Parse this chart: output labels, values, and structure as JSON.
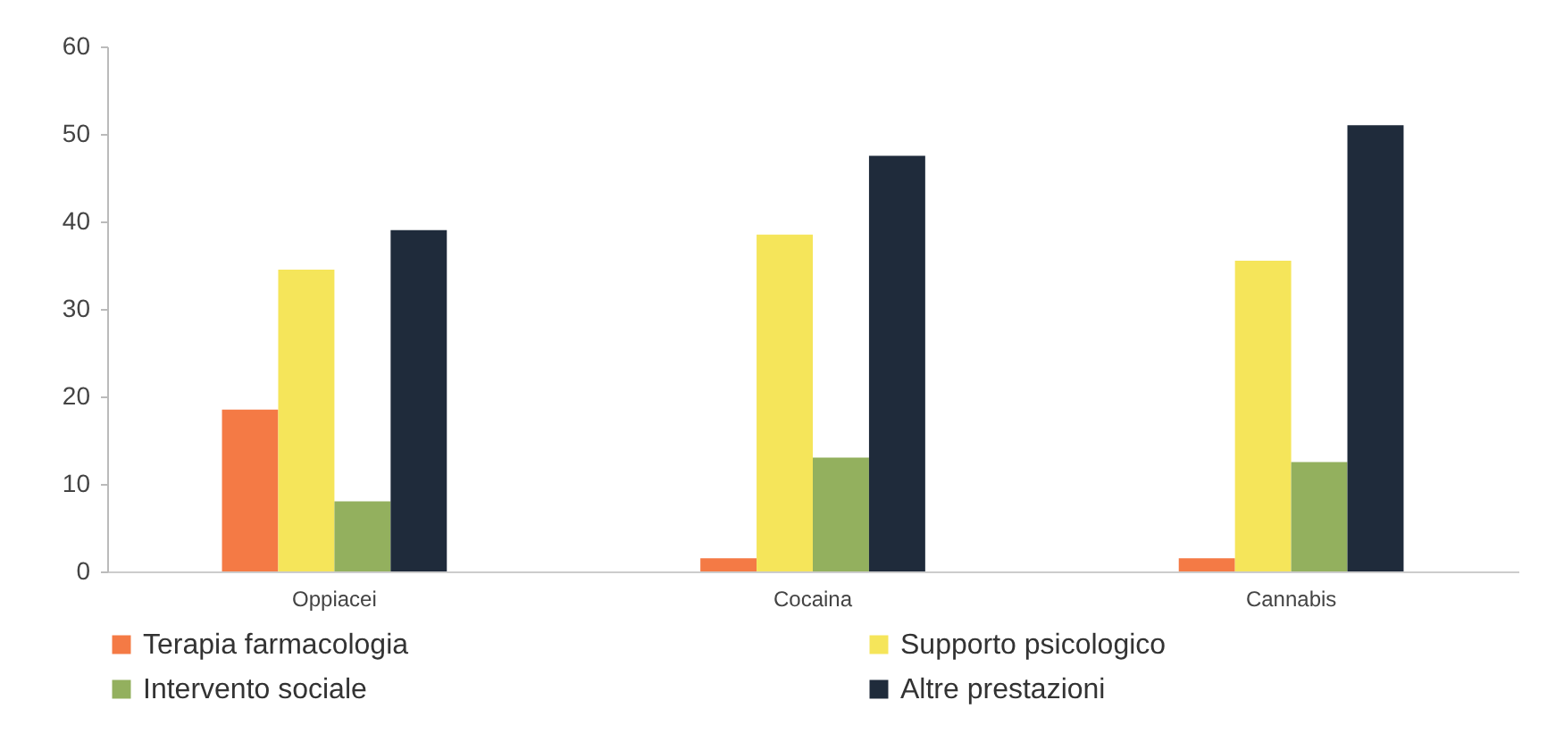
{
  "chart_data": {
    "type": "bar",
    "categories": [
      "Oppiacei",
      "Cocaina",
      "Cannabis"
    ],
    "series": [
      {
        "name": "Terapia farmacologia",
        "color": "#f47a45",
        "values": [
          18.5,
          1.5,
          1.5
        ]
      },
      {
        "name": "Supporto psicologico",
        "color": "#f5e55a",
        "values": [
          34.5,
          38.5,
          35.5
        ]
      },
      {
        "name": "Intervento sociale",
        "color": "#93b05e",
        "values": [
          8,
          13,
          12.5
        ]
      },
      {
        "name": "Altre prestazioni",
        "color": "#1f2b3b",
        "values": [
          39,
          47.5,
          51
        ]
      }
    ],
    "ylim": [
      0,
      60
    ],
    "yticks": [
      0,
      10,
      20,
      30,
      40,
      50,
      60
    ],
    "grid": false,
    "legend": "bottom"
  }
}
